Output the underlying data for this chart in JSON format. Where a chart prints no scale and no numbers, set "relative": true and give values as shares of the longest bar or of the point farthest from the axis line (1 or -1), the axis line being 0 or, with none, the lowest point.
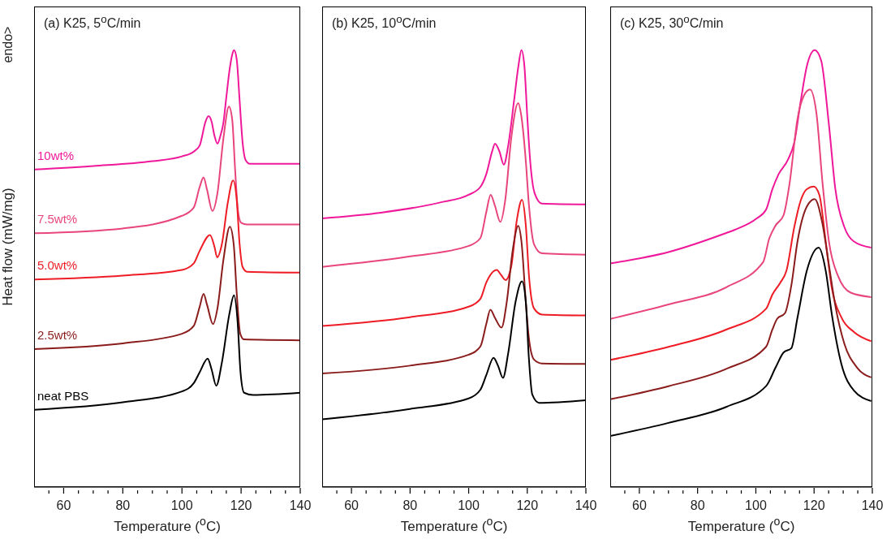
{
  "chart_data": [
    {
      "type": "line",
      "title": "(a) K25, 5$^{o}$C/min",
      "xlabel": "Temperature ($^{o}$C)",
      "ylabel": "Heat flow (mW/mg)",
      "annotations": [
        "endo>"
      ],
      "relative": true,
      "xlim": [
        50,
        140
      ],
      "xticks": [
        {
          "value": 55,
          "label": null
        },
        60,
        {
          "value": 65,
          "label": null
        },
        {
          "value": 70,
          "label": null
        },
        {
          "value": 75,
          "label": null
        },
        80,
        {
          "value": 85,
          "label": null
        },
        {
          "value": 90,
          "label": null
        },
        {
          "value": 95,
          "label": null
        },
        100,
        {
          "value": 105,
          "label": null
        },
        {
          "value": 110,
          "label": null
        },
        {
          "value": 115,
          "label": null
        },
        120,
        {
          "value": 125,
          "label": null
        },
        {
          "value": 130,
          "label": null
        },
        {
          "value": 135,
          "label": null
        },
        140
      ],
      "series": [
        {
          "name": "10wt%",
          "color": "#f0189a",
          "x": [
            50,
            70,
            90,
            100,
            104,
            106,
            108,
            109,
            110,
            111,
            112,
            113,
            114,
            115,
            116,
            117,
            117.6,
            118.5,
            119.5,
            120.5,
            121.5,
            123,
            140
          ],
          "values": [
            0.727,
            0.735,
            0.746,
            0.757,
            0.768,
            0.782,
            0.837,
            0.849,
            0.837,
            0.804,
            0.786,
            0.804,
            0.833,
            0.892,
            0.95,
            0.99,
            1,
            0.98,
            0.885,
            0.789,
            0.749,
            0.74,
            0.74
          ]
        },
        {
          "name": "7.5wt%",
          "color": "#e8457d",
          "x": [
            50,
            80,
            100,
            104,
            106,
            107.3,
            108.5,
            110.3,
            112,
            114,
            115.9,
            117,
            118,
            119,
            120,
            122,
            140
          ],
          "values": [
            0.581,
            0.592,
            0.621,
            0.64,
            0.687,
            0.709,
            0.68,
            0.632,
            0.673,
            0.797,
            0.871,
            0.841,
            0.724,
            0.629,
            0.605,
            0.601,
            0.601
          ]
        },
        {
          "name": "5.0wt%",
          "color": "#ee1c25",
          "x": [
            50,
            80,
            100,
            104,
            106,
            109.5,
            111,
            111.9,
            113.5,
            115.5,
            117.3,
            118.5,
            119.5,
            120.5,
            122,
            140
          ],
          "values": [
            0.475,
            0.484,
            0.497,
            0.512,
            0.541,
            0.577,
            0.55,
            0.526,
            0.556,
            0.651,
            0.702,
            0.659,
            0.556,
            0.504,
            0.493,
            0.491
          ]
        },
        {
          "name": "2.5wt%",
          "color": "#8b1c1c",
          "x": [
            50,
            80,
            100,
            104,
            106,
            107.3,
            108.5,
            110.5,
            112,
            114,
            116.2,
            117.5,
            118.5,
            119.7,
            121,
            140
          ],
          "values": [
            0.316,
            0.329,
            0.351,
            0.369,
            0.413,
            0.442,
            0.417,
            0.373,
            0.409,
            0.519,
            0.596,
            0.556,
            0.446,
            0.351,
            0.338,
            0.336
          ]
        },
        {
          "name": "neat PBS",
          "color": "#000000",
          "x": [
            50,
            80,
            100,
            104,
            106,
            108.7,
            110,
            111.6,
            113.5,
            116,
            117.6,
            118.8,
            119.8,
            121,
            124,
            140
          ],
          "values": [
            0.177,
            0.194,
            0.219,
            0.238,
            0.263,
            0.294,
            0.27,
            0.232,
            0.285,
            0.395,
            0.439,
            0.38,
            0.263,
            0.216,
            0.211,
            0.216
          ]
        }
      ]
    },
    {
      "type": "line",
      "title": "(b) K25, 10$^{o}$C/min",
      "xlabel": "Temperature ($^{o}$C)",
      "relative": true,
      "xlim": [
        50,
        140
      ],
      "xticks": [
        {
          "value": 55,
          "label": null
        },
        60,
        {
          "value": 65,
          "label": null
        },
        {
          "value": 70,
          "label": null
        },
        {
          "value": 75,
          "label": null
        },
        80,
        {
          "value": 85,
          "label": null
        },
        {
          "value": 90,
          "label": null
        },
        {
          "value": 95,
          "label": null
        },
        100,
        {
          "value": 105,
          "label": null
        },
        {
          "value": 110,
          "label": null
        },
        {
          "value": 115,
          "label": null
        },
        120,
        {
          "value": 125,
          "label": null
        },
        {
          "value": 130,
          "label": null
        },
        {
          "value": 135,
          "label": null
        },
        140
      ],
      "series": [
        {
          "color": "#f0189a",
          "x": [
            50,
            70,
            90,
            100,
            104,
            106,
            108,
            109,
            110.5,
            112,
            113.5,
            115.5,
            117,
            118,
            119,
            120,
            121,
            122.5,
            125,
            140
          ],
          "values": [
            0.615,
            0.628,
            0.651,
            0.669,
            0.687,
            0.716,
            0.768,
            0.786,
            0.768,
            0.738,
            0.782,
            0.885,
            0.965,
            1,
            0.965,
            0.848,
            0.746,
            0.673,
            0.649,
            0.647
          ]
        },
        {
          "color": "#e8457d",
          "x": [
            50,
            80,
            100,
            104,
            106,
            107.5,
            109,
            110.8,
            112.5,
            114.5,
            116.9,
            118,
            119.5,
            120.5,
            122.3,
            125,
            140
          ],
          "values": [
            0.504,
            0.528,
            0.552,
            0.57,
            0.629,
            0.669,
            0.643,
            0.607,
            0.658,
            0.797,
            0.879,
            0.848,
            0.746,
            0.651,
            0.556,
            0.535,
            0.532
          ]
        },
        {
          "color": "#ee1c25",
          "x": [
            50,
            80,
            100,
            104,
            106,
            109.6,
            111,
            112.6,
            114.5,
            116.5,
            118.2,
            119.5,
            120.6,
            122.3,
            125,
            140
          ],
          "values": [
            0.369,
            0.389,
            0.413,
            0.431,
            0.468,
            0.497,
            0.486,
            0.474,
            0.504,
            0.614,
            0.658,
            0.599,
            0.482,
            0.409,
            0.395,
            0.393
          ]
        },
        {
          "color": "#8b1c1c",
          "x": [
            50,
            80,
            100,
            104,
            106,
            107.4,
            109,
            111.2,
            113,
            115,
            116.9,
            118,
            119.5,
            120.5,
            122.3,
            125,
            140
          ],
          "values": [
            0.26,
            0.278,
            0.303,
            0.322,
            0.373,
            0.406,
            0.387,
            0.365,
            0.424,
            0.541,
            0.598,
            0.563,
            0.424,
            0.344,
            0.292,
            0.283,
            0.282
          ]
        },
        {
          "color": "#000000",
          "x": [
            50,
            80,
            100,
            104,
            106,
            108.5,
            110,
            111.7,
            113.5,
            116,
            118.2,
            119.5,
            120.5,
            121.7,
            124,
            140
          ],
          "values": [
            0.155,
            0.179,
            0.203,
            0.223,
            0.256,
            0.296,
            0.278,
            0.25,
            0.307,
            0.424,
            0.471,
            0.424,
            0.3,
            0.212,
            0.193,
            0.199
          ]
        }
      ]
    },
    {
      "type": "line",
      "title": "(c) K25, 30$^{o}$C/min",
      "xlabel": "Temperature ($^{o}$C)",
      "relative": true,
      "xlim": [
        50,
        140
      ],
      "xticks": [
        {
          "value": 55,
          "label": null
        },
        60,
        {
          "value": 65,
          "label": null
        },
        {
          "value": 70,
          "label": null
        },
        {
          "value": 75,
          "label": null
        },
        80,
        {
          "value": 85,
          "label": null
        },
        {
          "value": 90,
          "label": null
        },
        {
          "value": 95,
          "label": null
        },
        100,
        {
          "value": 105,
          "label": null
        },
        {
          "value": 110,
          "label": null
        },
        {
          "value": 115,
          "label": null
        },
        120,
        {
          "value": 125,
          "label": null
        },
        {
          "value": 130,
          "label": null
        },
        {
          "value": 135,
          "label": null
        },
        140
      ],
      "series": [
        {
          "color": "#f0189a",
          "x": [
            50,
            70,
            90,
            92.8,
            100.3,
            103.5,
            105.7,
            107.8,
            111,
            113.2,
            115.4,
            117.5,
            120.2,
            122.4,
            125.1,
            127.3,
            130.4,
            133.7,
            139.6
          ],
          "values": [
            0.512,
            0.538,
            0.582,
            0.589,
            0.615,
            0.635,
            0.682,
            0.716,
            0.749,
            0.789,
            0.883,
            0.963,
            1,
            0.977,
            0.829,
            0.682,
            0.595,
            0.562,
            0.548
          ]
        },
        {
          "color": "#e8457d",
          "x": [
            50,
            70,
            90,
            102.5,
            104.6,
            106.8,
            109.5,
            111.6,
            114.3,
            116.5,
            118.6,
            120.8,
            122.9,
            125.1,
            128.3,
            132.6,
            139.6
          ],
          "values": [
            0.385,
            0.418,
            0.458,
            0.515,
            0.569,
            0.599,
            0.622,
            0.696,
            0.843,
            0.896,
            0.91,
            0.856,
            0.696,
            0.562,
            0.482,
            0.445,
            0.435
          ]
        },
        {
          "color": "#ee1c25",
          "x": [
            50,
            70,
            90,
            103.5,
            105.7,
            108.4,
            110.5,
            113.2,
            115.4,
            117.5,
            119.9,
            121.8,
            124,
            126.1,
            129.4,
            133.7,
            139.6
          ],
          "values": [
            0.291,
            0.321,
            0.361,
            0.408,
            0.441,
            0.468,
            0.495,
            0.595,
            0.656,
            0.682,
            0.688,
            0.669,
            0.562,
            0.455,
            0.388,
            0.355,
            0.334
          ]
        },
        {
          "color": "#8b1c1c",
          "x": [
            50,
            70,
            90,
            103.5,
            105.7,
            107.3,
            110,
            112.2,
            114.3,
            117.5,
            120.2,
            122.9,
            125.1,
            127.3,
            130.4,
            134.7,
            139.6
          ],
          "values": [
            0.201,
            0.231,
            0.271,
            0.321,
            0.361,
            0.385,
            0.398,
            0.462,
            0.562,
            0.642,
            0.659,
            0.602,
            0.508,
            0.415,
            0.328,
            0.274,
            0.251
          ]
        },
        {
          "color": "#000000",
          "x": [
            50,
            70,
            90,
            103.5,
            106.8,
            109.5,
            112.2,
            114.3,
            117.5,
            121.6,
            124,
            126.1,
            129.4,
            133.7,
            139.6
          ],
          "values": [
            0.117,
            0.147,
            0.184,
            0.231,
            0.274,
            0.308,
            0.318,
            0.388,
            0.495,
            0.548,
            0.495,
            0.395,
            0.281,
            0.221,
            0.197
          ]
        }
      ]
    }
  ]
}
